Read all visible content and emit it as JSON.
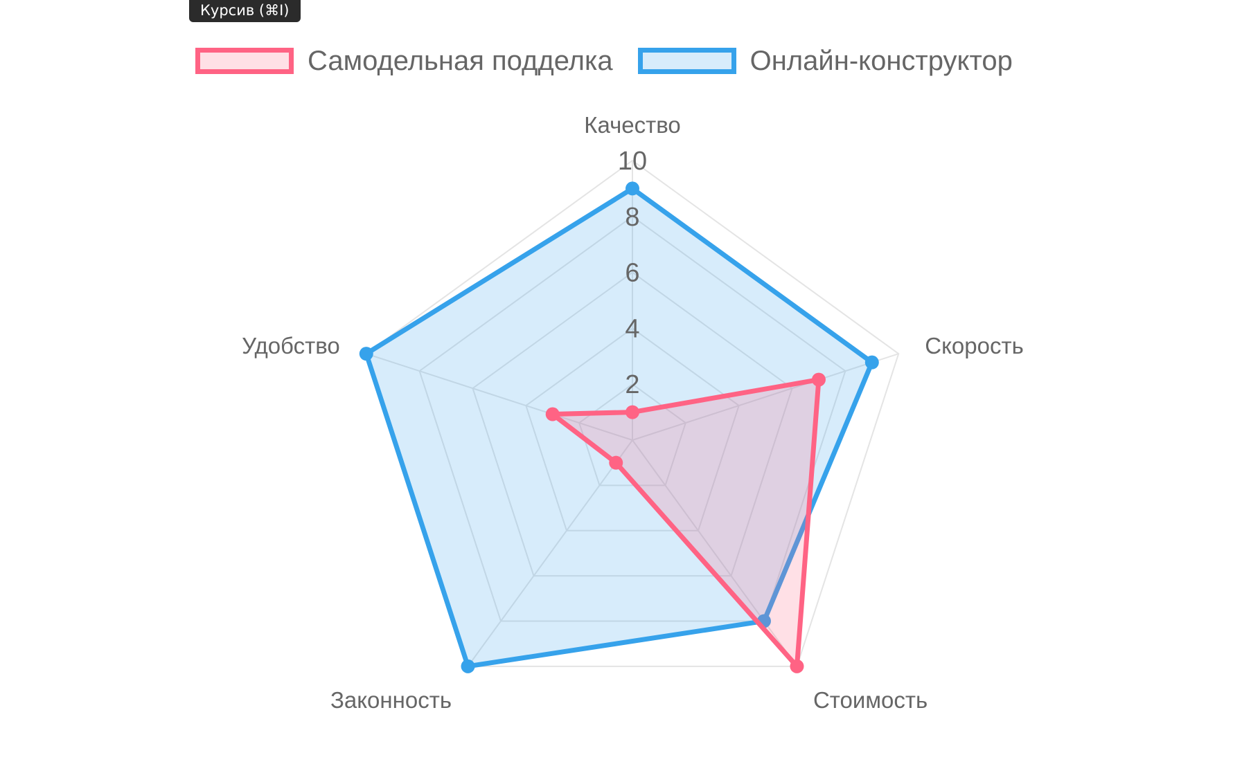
{
  "tooltip": {
    "text": "Курсив (⌘I)"
  },
  "chart_data": {
    "type": "radar",
    "labels": [
      "Качество",
      "Скорость",
      "Стоимость",
      "Законность",
      "Удобство"
    ],
    "ticks": [
      2,
      4,
      6,
      8,
      10
    ],
    "rlim": [
      0,
      10
    ],
    "grid": true,
    "legend_position": "top",
    "series": [
      {
        "name": "Самодельная подделка",
        "values": [
          1,
          7,
          10,
          1,
          3
        ],
        "border_color": "#ff6384",
        "fill_color": "rgba(255,99,132,0.2)"
      },
      {
        "name": "Онлайн-конструктор",
        "values": [
          9,
          9,
          8,
          10,
          10
        ],
        "border_color": "#36a2eb",
        "fill_color": "rgba(54,162,235,0.2)"
      }
    ]
  }
}
